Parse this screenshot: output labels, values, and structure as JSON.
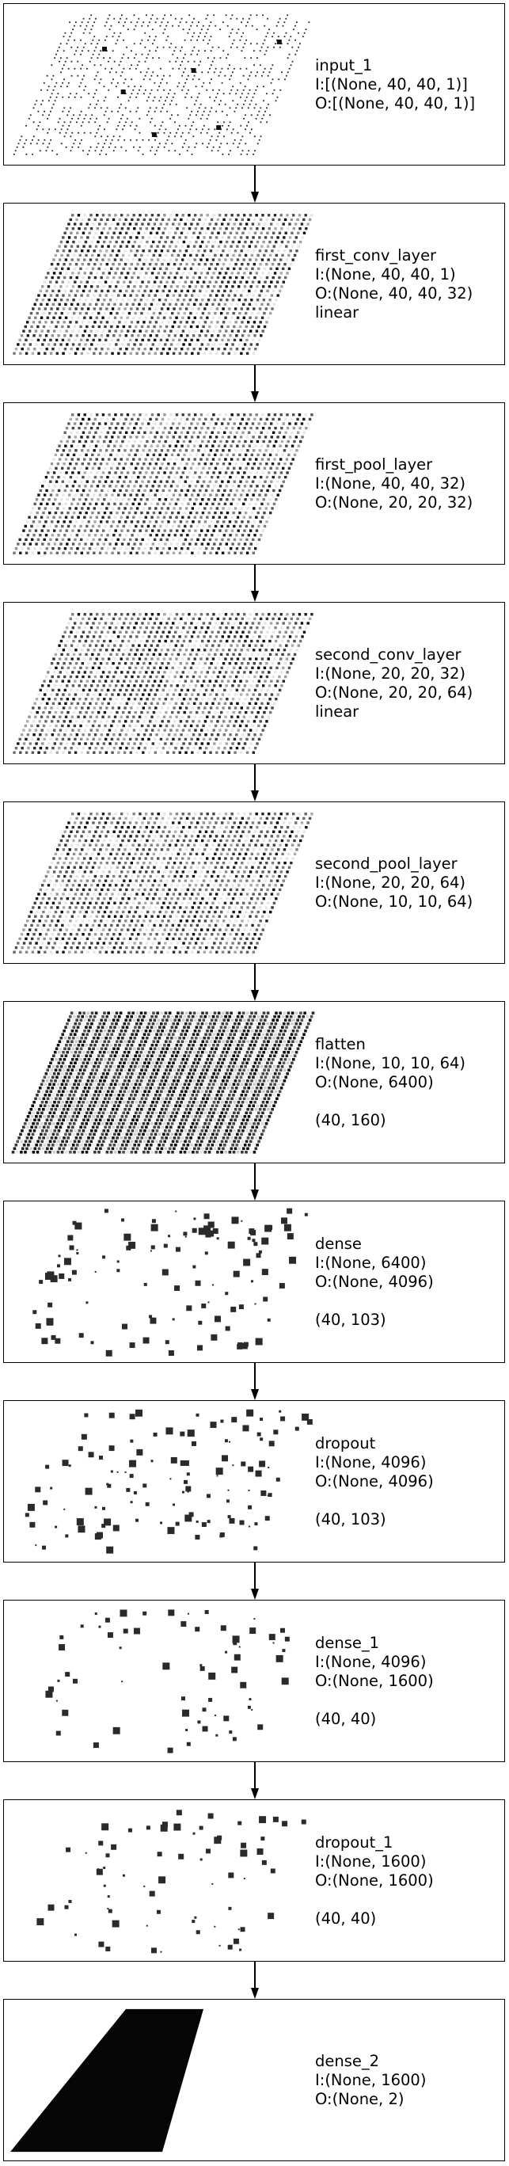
{
  "layers": [
    {
      "name": "input_1",
      "input": "I:[(None, 40, 40, 1)]",
      "output": "O:[(None, 40, 40, 1)]",
      "extra": "",
      "shape": "",
      "vis": "sparse-plane"
    },
    {
      "name": "first_conv_layer",
      "input": "I:(None, 40, 40, 1)",
      "output": "O:(None, 40, 40, 32)",
      "extra": "linear",
      "shape": "",
      "vis": "dense-plane"
    },
    {
      "name": "first_pool_layer",
      "input": "I:(None, 40, 40, 32)",
      "output": "O:(None, 20, 20, 32)",
      "extra": "",
      "shape": "",
      "vis": "dense-plane"
    },
    {
      "name": "second_conv_layer",
      "input": "I:(None, 20, 20, 32)",
      "output": "O:(None, 20, 20, 64)",
      "extra": "linear",
      "shape": "",
      "vis": "dense-plane"
    },
    {
      "name": "second_pool_layer",
      "input": "I:(None, 20, 20, 64)",
      "output": "O:(None, 10, 10, 64)",
      "extra": "",
      "shape": "",
      "vis": "dense-plane"
    },
    {
      "name": "flatten",
      "input": "I:(None, 10, 10, 64)",
      "output": "O:(None, 6400)",
      "extra": "",
      "shape": "(40, 160)",
      "vis": "striped-plane"
    },
    {
      "name": "dense",
      "input": "I:(None, 6400)",
      "output": "O:(None, 4096)",
      "extra": "",
      "shape": "(40, 103)",
      "vis": "scatter-squares"
    },
    {
      "name": "dropout",
      "input": "I:(None, 4096)",
      "output": "O:(None, 4096)",
      "extra": "",
      "shape": "(40, 103)",
      "vis": "scatter-squares"
    },
    {
      "name": "dense_1",
      "input": "I:(None, 4096)",
      "output": "O:(None, 1600)",
      "extra": "",
      "shape": "(40, 40)",
      "vis": "scatter-squares"
    },
    {
      "name": "dropout_1",
      "input": "I:(None, 1600)",
      "output": "O:(None, 1600)",
      "extra": "",
      "shape": "(40, 40)",
      "vis": "scatter-squares"
    },
    {
      "name": "dense_2",
      "input": "I:(None, 1600)",
      "output": "O:(None, 2)",
      "extra": "",
      "shape": "",
      "vis": "solid-plane"
    }
  ]
}
